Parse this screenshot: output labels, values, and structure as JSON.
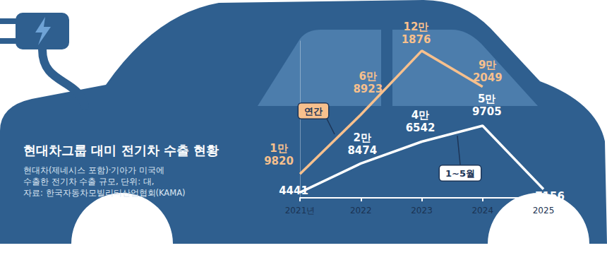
{
  "chart_data": {
    "type": "line",
    "title": "현대차그룹 대미 전기차 수출 현황",
    "subtitle": "현대차(제네시스 포함)·기아가 미국에\n수출한 전기차 수출 규모, 단위: 대,\n자료: 한국자동차모빌리티산업협회(KAMA)",
    "categories": [
      "2021년",
      "2022",
      "2023",
      "2024",
      "2025"
    ],
    "series": [
      {
        "name": "연간",
        "color": "#f7c08d",
        "values": [
          19820,
          68923,
          121876,
          92049,
          null
        ],
        "value_labels": [
          "1만\n9820",
          "6만\n8923",
          "12만\n1876",
          "9만\n2049",
          null
        ]
      },
      {
        "name": "1~5월",
        "color": "#ffffff",
        "values": [
          4441,
          28474,
          46542,
          59705,
          7156
        ],
        "value_labels": [
          "4441",
          "2만\n8474",
          "4만\n6542",
          "5만\n9705",
          "7156"
        ]
      }
    ],
    "ylim": [
      0,
      130000
    ],
    "grid": false,
    "data_labels": true,
    "tick_labels": "x"
  }
}
